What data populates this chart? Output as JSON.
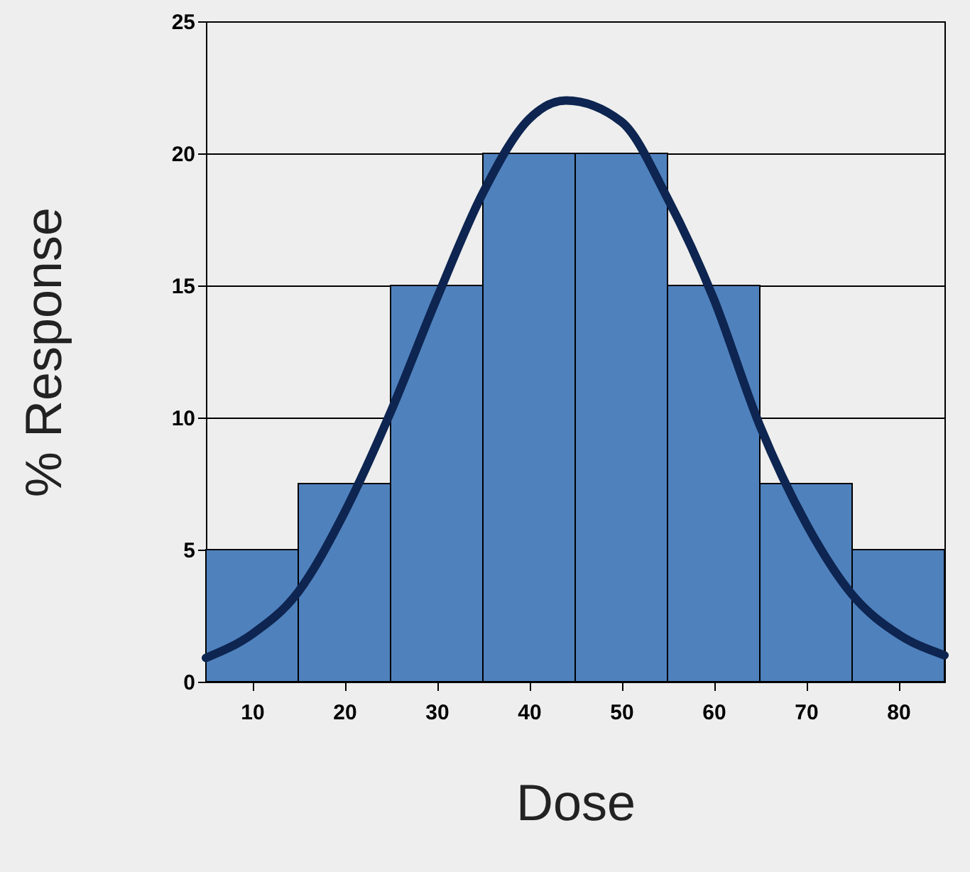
{
  "chart_data": {
    "type": "histogram",
    "xlabel": "Dose",
    "ylabel": "% Response",
    "bins": [
      5,
      15,
      25,
      35,
      45,
      55,
      65,
      75,
      85
    ],
    "values": [
      5,
      7.5,
      15,
      20,
      20,
      15,
      7.5,
      5
    ],
    "color": "#4f81bd",
    "series": [
      {
        "type": "line",
        "color": "#0d2550",
        "x": [
          5,
          10,
          15,
          20,
          25,
          30,
          35,
          40,
          44,
          50,
          55,
          60,
          65,
          70,
          75,
          80,
          85
        ],
        "values": [
          0.9,
          1.8,
          3.4,
          6.4,
          10.2,
          14.5,
          18.5,
          21.3,
          22.0,
          21.2,
          18.3,
          14.5,
          9.7,
          6.0,
          3.3,
          1.8,
          1.0
        ]
      }
    ],
    "xlim": [
      5,
      85
    ],
    "xticks": [
      10,
      20,
      30,
      40,
      50,
      60,
      70,
      80
    ],
    "ylim": [
      0,
      25
    ],
    "yticks": [
      0,
      5,
      10,
      15,
      20,
      25
    ],
    "grid": "y",
    "marker": "none",
    "line_style": "solid"
  }
}
